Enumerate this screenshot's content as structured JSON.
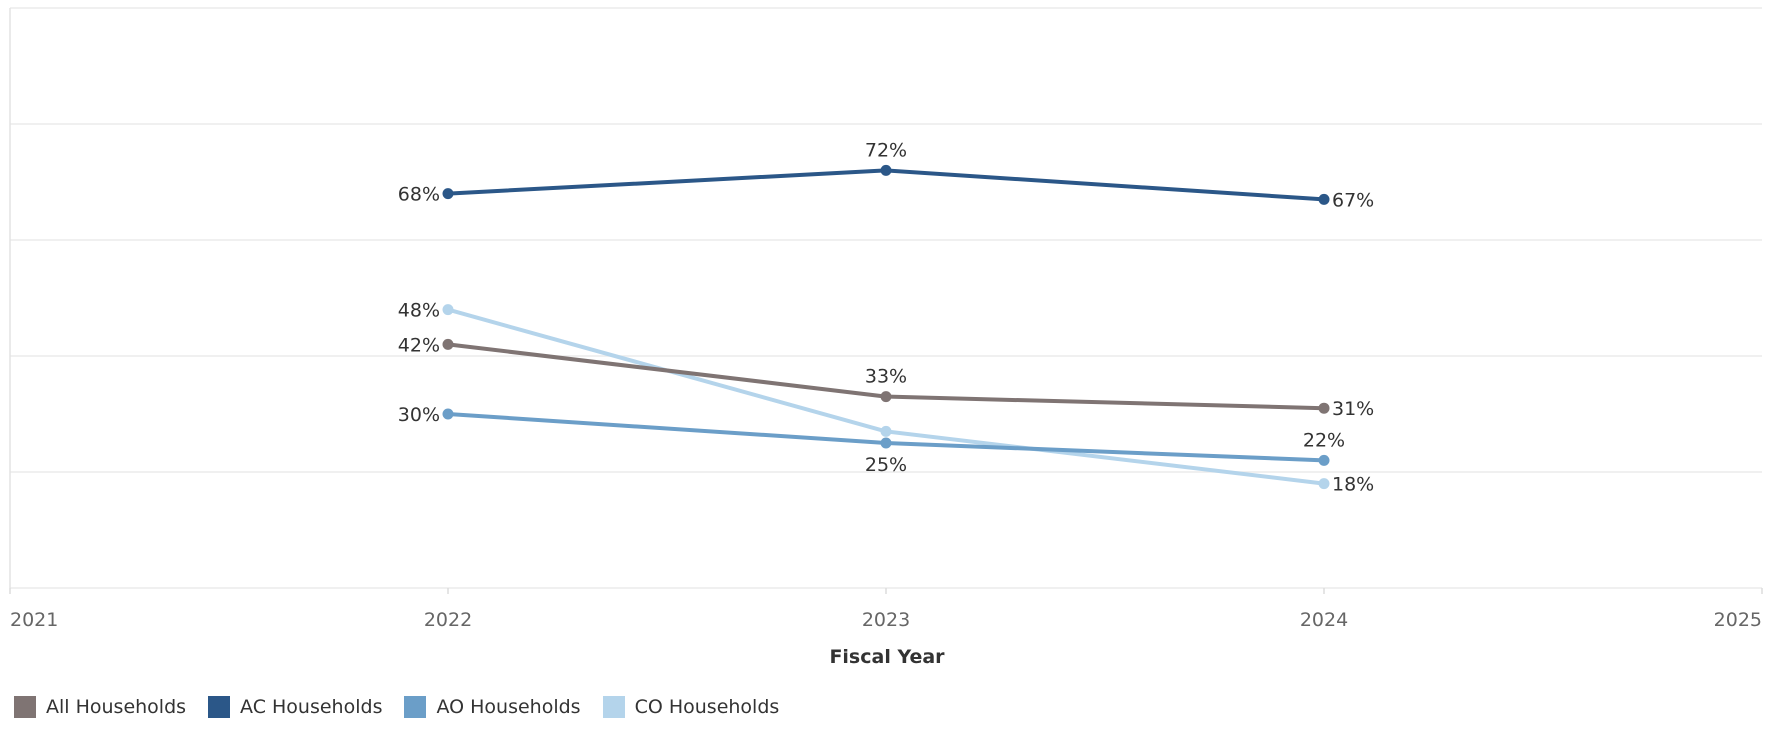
{
  "chart_data": {
    "type": "line",
    "xlabel": "Fiscal Year",
    "ylabel": "",
    "x_ticks": [
      "2021",
      "2022",
      "2023",
      "2024",
      "2025"
    ],
    "xlim": [
      2021,
      2025
    ],
    "ylim": [
      0,
      100
    ],
    "grid": true,
    "legend_position": "bottom-left",
    "series": [
      {
        "name": "AC Households",
        "color": "#2b5788",
        "x": [
          2022,
          2023,
          2024
        ],
        "values": [
          68,
          72,
          67
        ],
        "labels": [
          "68%",
          "72%",
          "67%"
        ],
        "label_pos": [
          "left",
          "above",
          "right"
        ]
      },
      {
        "name": "CO Households",
        "color": "#b4d4eb",
        "x": [
          2022,
          2023,
          2024
        ],
        "values": [
          48,
          27,
          18
        ],
        "labels": [
          "48%",
          "",
          "18%"
        ],
        "label_pos": [
          "left",
          "none",
          "right"
        ]
      },
      {
        "name": "All Households",
        "color": "#7f7473",
        "x": [
          2022,
          2023,
          2024
        ],
        "values": [
          42,
          33,
          31
        ],
        "labels": [
          "42%",
          "33%",
          "31%"
        ],
        "label_pos": [
          "left",
          "above",
          "right"
        ]
      },
      {
        "name": "AO Households",
        "color": "#6b9ec8",
        "x": [
          2022,
          2023,
          2024
        ],
        "values": [
          30,
          25,
          22
        ],
        "labels": [
          "30%",
          "25%",
          "22%"
        ],
        "label_pos": [
          "left",
          "below",
          "above"
        ]
      }
    ],
    "legend": [
      {
        "name": "All Households",
        "color": "#7f7473"
      },
      {
        "name": "AC Households",
        "color": "#2b5788"
      },
      {
        "name": "AO Households",
        "color": "#6b9ec8"
      },
      {
        "name": "CO Households",
        "color": "#b4d4eb"
      }
    ]
  }
}
